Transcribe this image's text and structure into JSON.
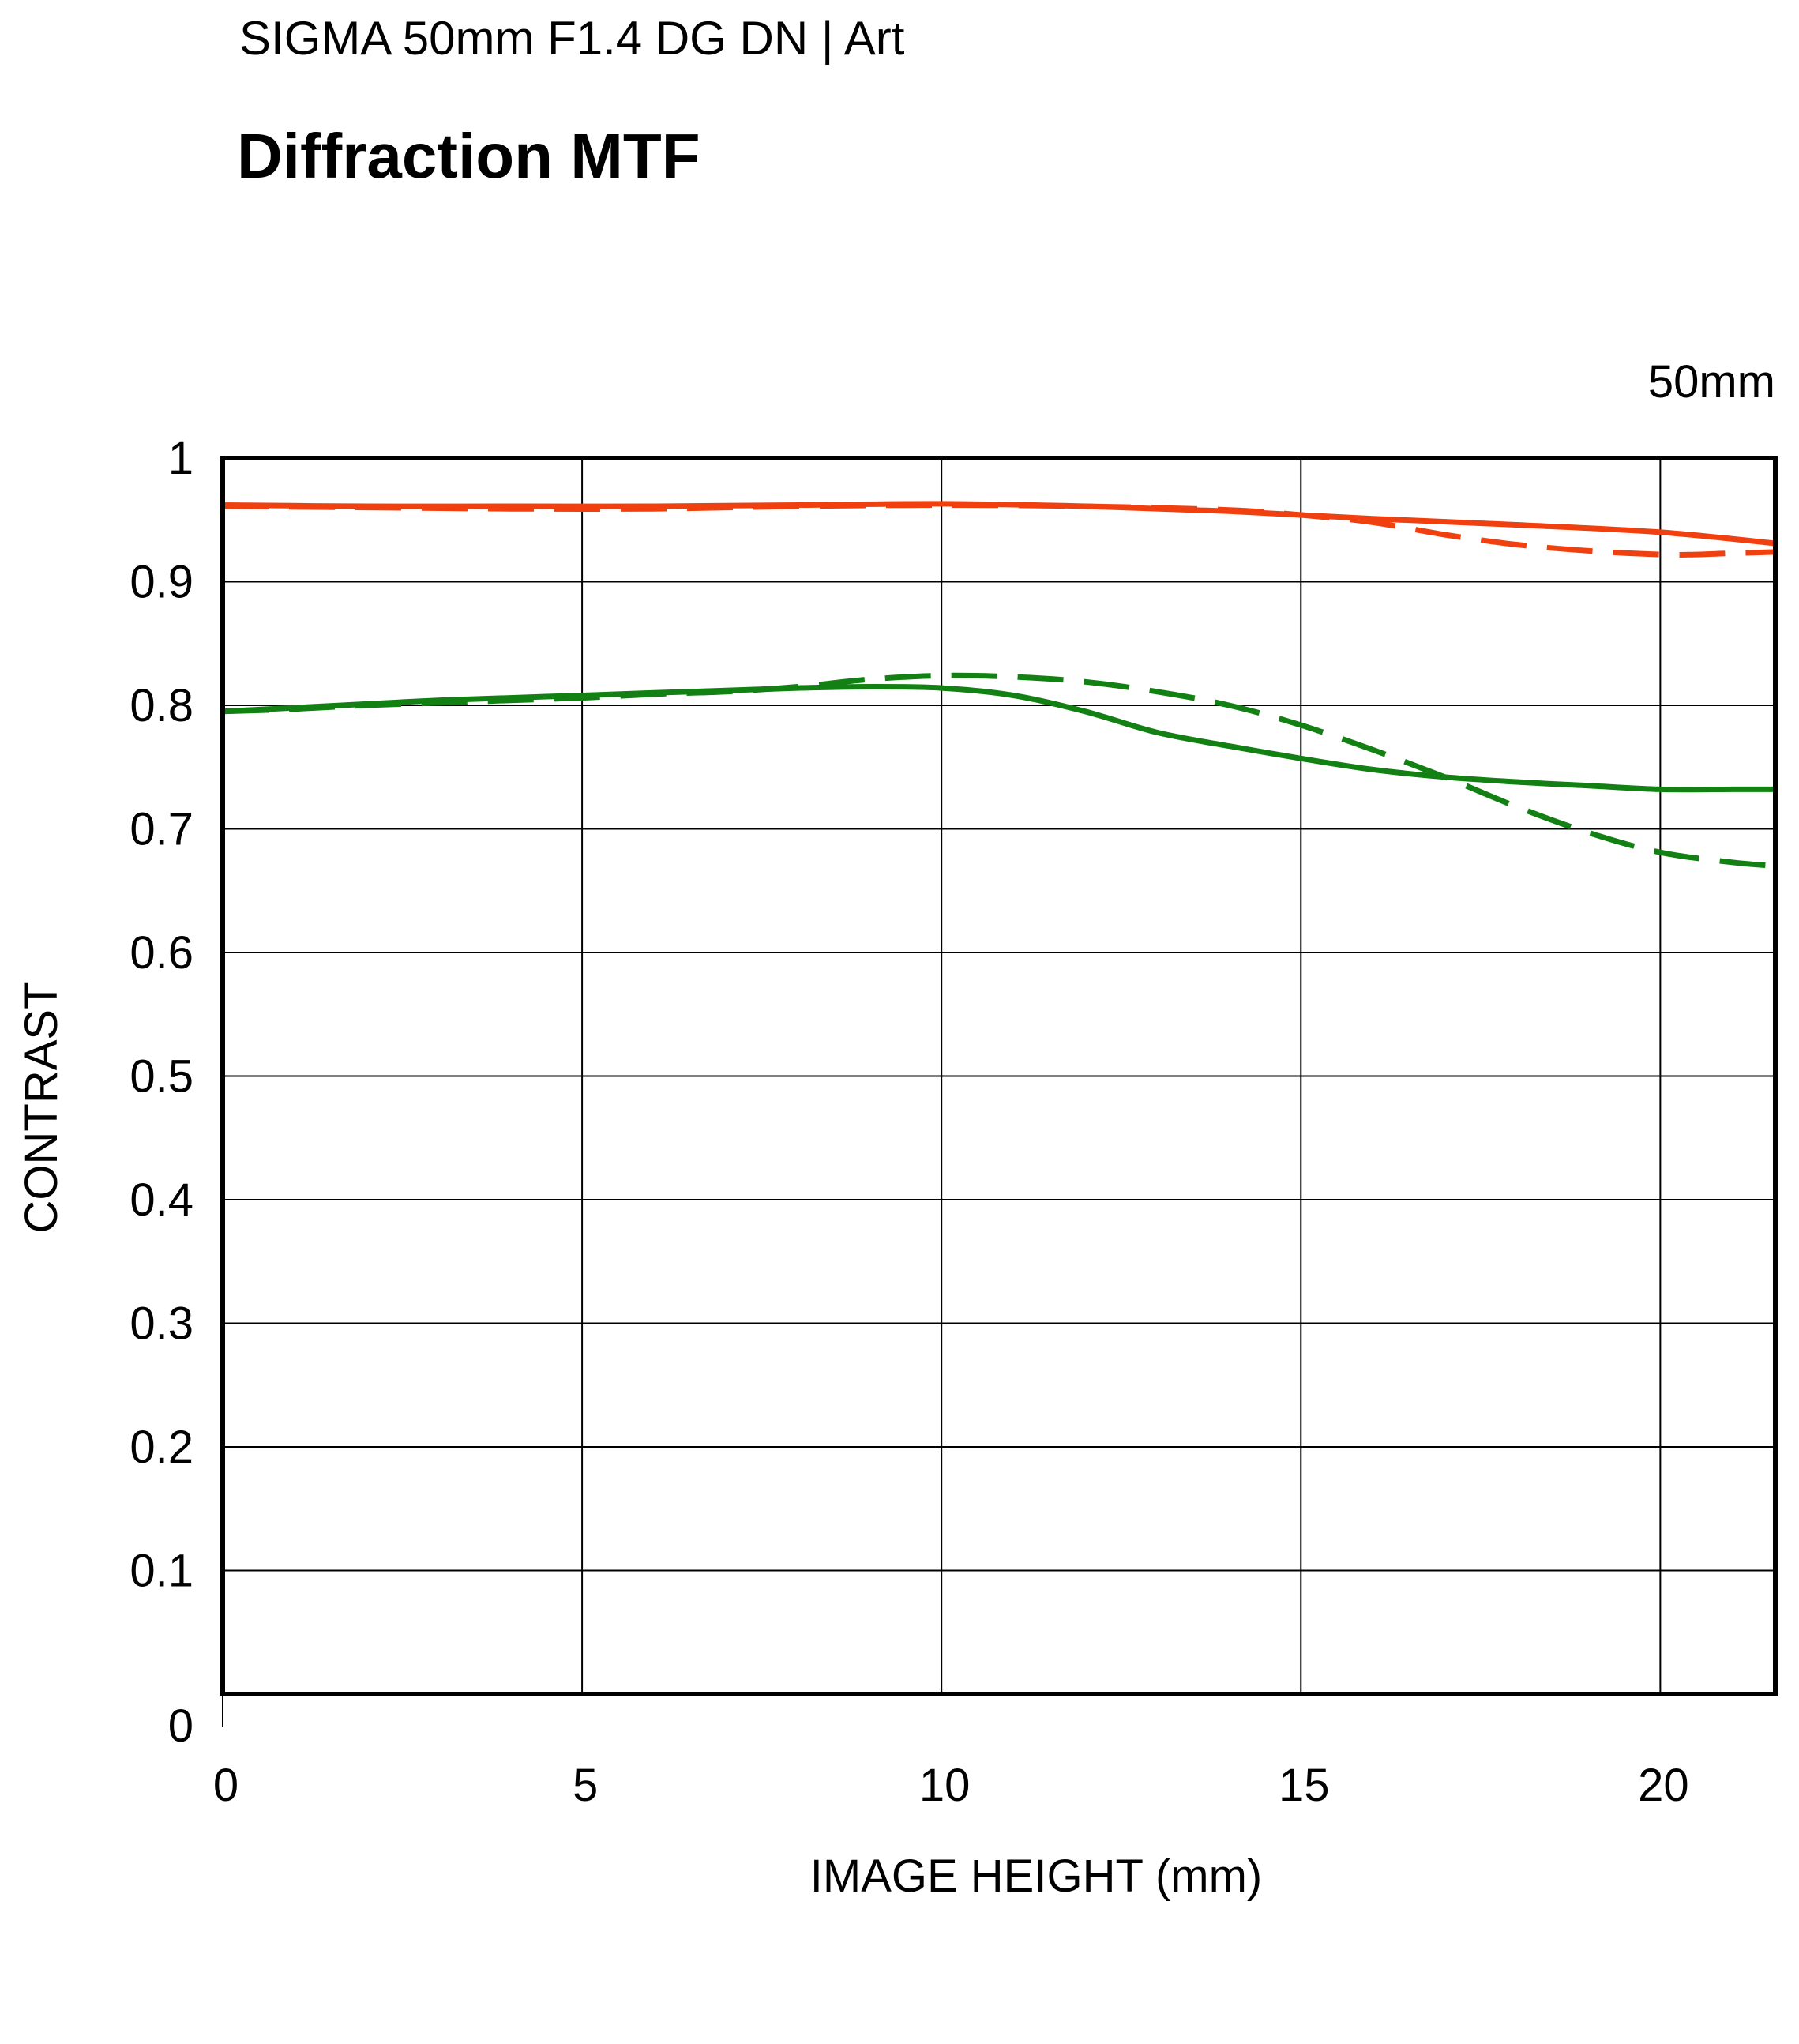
{
  "header": {
    "subtitle": "SIGMA 50mm F1.4 DG DN | Art",
    "title": "Diffraction MTF",
    "focal_length": "50mm"
  },
  "chart_data": {
    "type": "line",
    "title": "Diffraction MTF",
    "subtitle": "SIGMA 50mm F1.4 DG DN | Art",
    "annotation": "50mm",
    "xlabel": "IMAGE HEIGHT (mm)",
    "ylabel": "CONTRAST",
    "xlim": [
      0,
      21.6
    ],
    "ylim": [
      0,
      1
    ],
    "xticks": [
      0,
      5,
      10,
      15,
      20
    ],
    "yticks": [
      0,
      0.1,
      0.2,
      0.3,
      0.4,
      0.5,
      0.6,
      0.7,
      0.8,
      0.9,
      1
    ],
    "ytick_labels": [
      "0",
      "0.1",
      "0.2",
      "0.3",
      "0.4",
      "0.5",
      "0.6",
      "0.7",
      "0.8",
      "0.9",
      "1"
    ],
    "xtick_labels": [
      "0",
      "5",
      "10",
      "15",
      "20"
    ],
    "grid": true,
    "series": [
      {
        "color": "#f04010",
        "dash": "solid",
        "x": [
          0,
          2,
          4,
          6,
          8,
          10,
          12,
          14,
          16,
          18,
          20,
          21.6
        ],
        "y": [
          0.962,
          0.961,
          0.961,
          0.961,
          0.962,
          0.963,
          0.961,
          0.957,
          0.951,
          0.946,
          0.94,
          0.931
        ]
      },
      {
        "color": "#f04010",
        "dash": "dashed",
        "x": [
          0,
          2,
          4,
          6,
          8,
          10,
          12,
          14,
          15,
          16,
          17,
          18,
          19,
          20,
          20.5,
          21,
          21.6
        ],
        "y": [
          0.961,
          0.96,
          0.959,
          0.959,
          0.961,
          0.962,
          0.961,
          0.958,
          0.954,
          0.948,
          0.938,
          0.93,
          0.925,
          0.922,
          0.922,
          0.923,
          0.924
        ]
      },
      {
        "color": "#128012",
        "dash": "solid",
        "x": [
          0,
          1,
          2,
          3,
          4,
          5,
          6,
          7,
          8,
          9,
          10,
          11,
          12,
          13,
          14,
          15,
          16,
          17,
          18,
          19,
          20,
          21,
          21.6
        ],
        "y": [
          0.795,
          0.798,
          0.801,
          0.804,
          0.806,
          0.808,
          0.81,
          0.812,
          0.814,
          0.815,
          0.814,
          0.808,
          0.795,
          0.778,
          0.767,
          0.757,
          0.748,
          0.742,
          0.738,
          0.735,
          0.732,
          0.732,
          0.732
        ]
      },
      {
        "color": "#128012",
        "dash": "dashed",
        "x": [
          0,
          1,
          2,
          3,
          4,
          5,
          6,
          7,
          8,
          9,
          10,
          11,
          12,
          13,
          14,
          15,
          16,
          17,
          18,
          19,
          20,
          21,
          21.6
        ],
        "y": [
          0.795,
          0.797,
          0.8,
          0.802,
          0.804,
          0.806,
          0.809,
          0.811,
          0.815,
          0.821,
          0.824,
          0.823,
          0.819,
          0.811,
          0.8,
          0.784,
          0.764,
          0.742,
          0.718,
          0.697,
          0.681,
          0.673,
          0.67
        ]
      }
    ]
  }
}
